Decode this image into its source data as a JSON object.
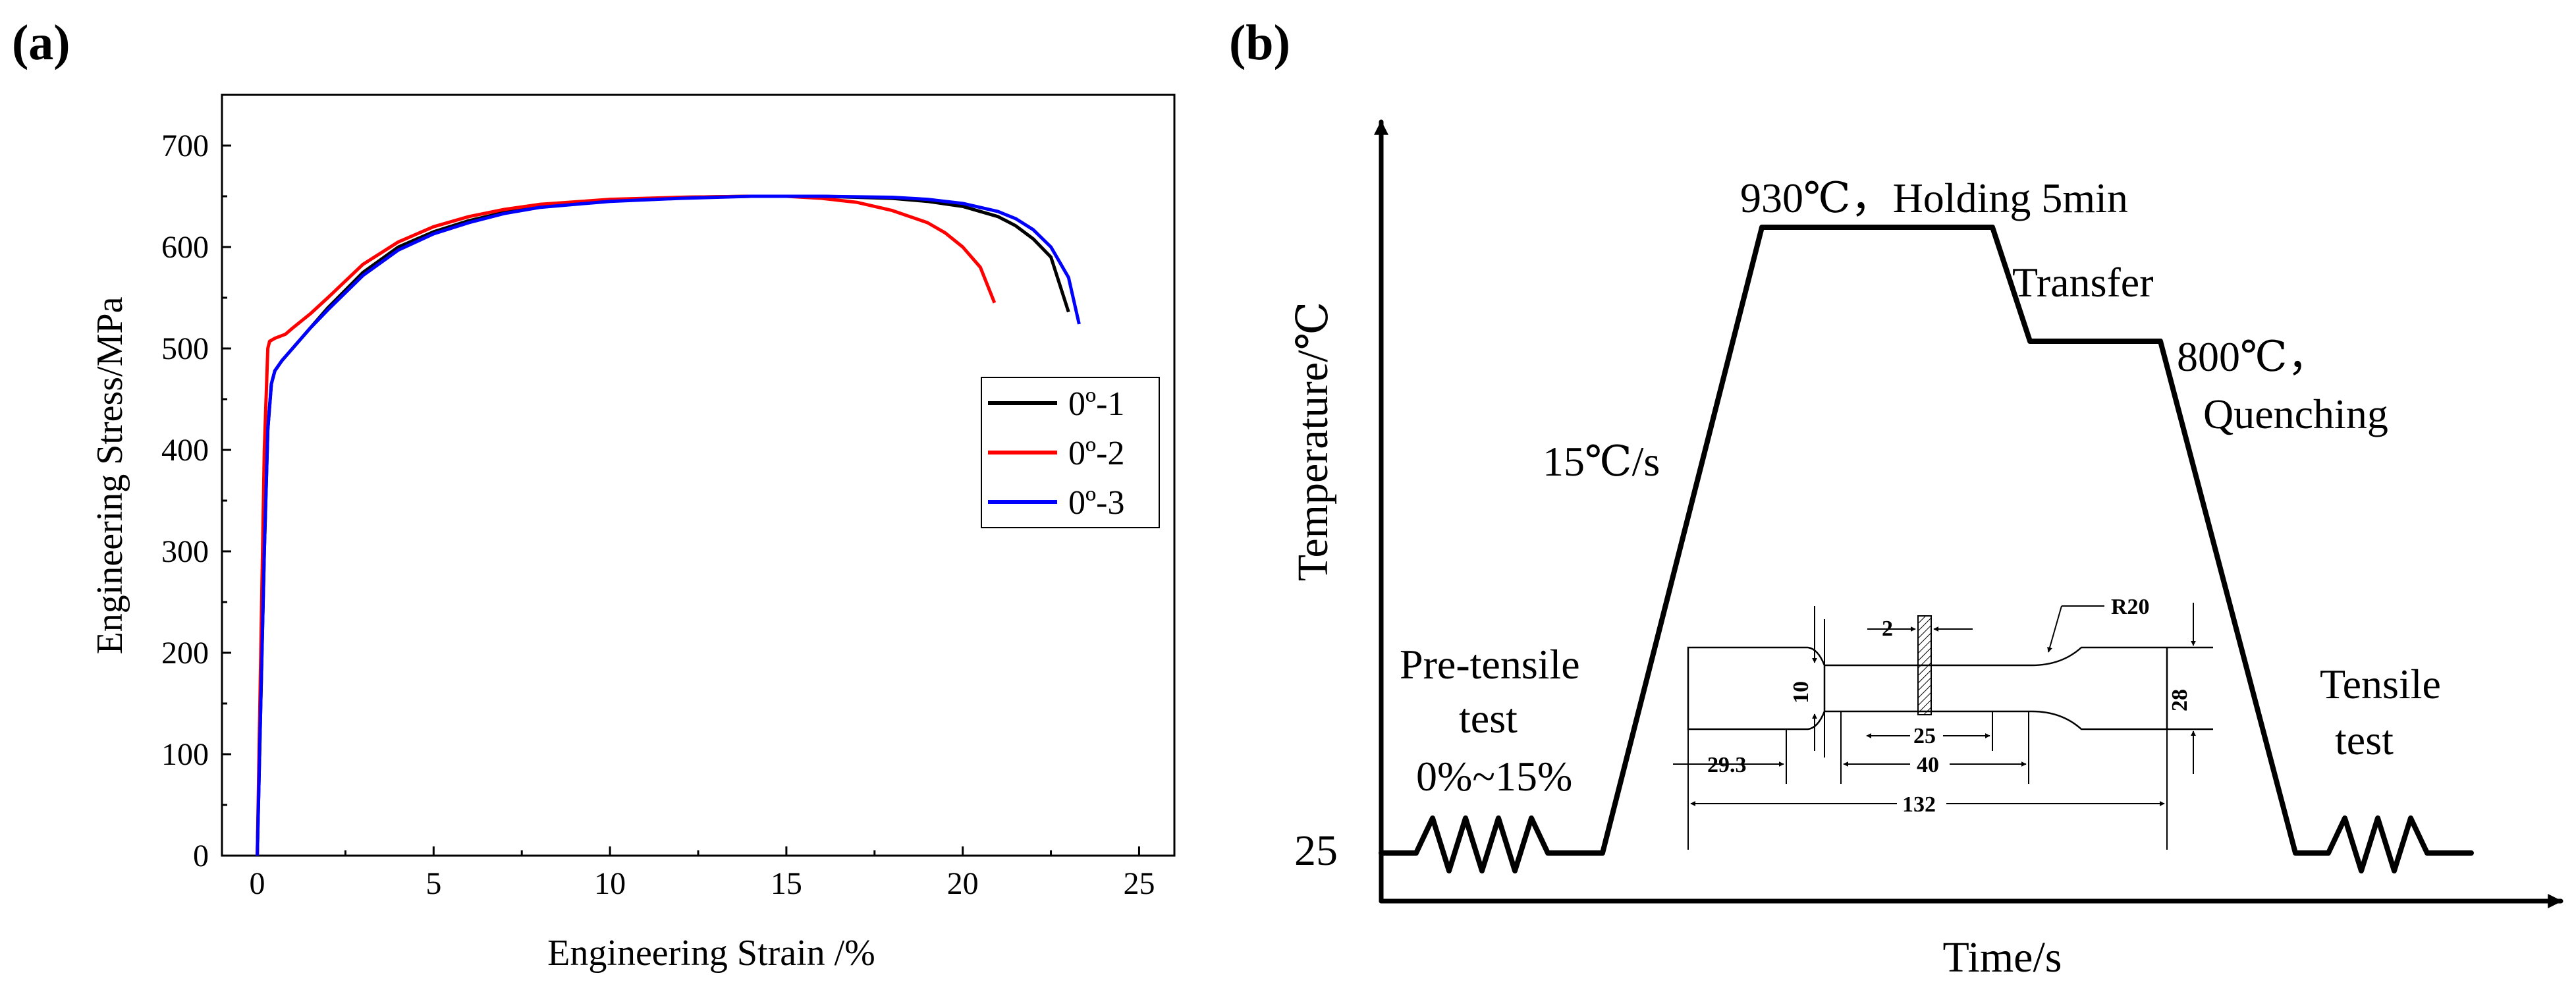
{
  "panel_a": {
    "label": "(a)",
    "chart_data": {
      "type": "line",
      "title": "",
      "xlabel": "Engineering Strain /%",
      "ylabel": "Engineering Stress/MPa",
      "xlim": [
        -1,
        26
      ],
      "ylim": [
        0,
        750
      ],
      "xticks": [
        0,
        5,
        10,
        15,
        20,
        25
      ],
      "yticks": [
        0,
        100,
        200,
        300,
        400,
        500,
        600,
        700
      ],
      "legend_position": "right",
      "series": [
        {
          "name": "0º-1",
          "color": "#000000",
          "x": [
            0.0,
            0.1,
            0.2,
            0.3,
            0.4,
            0.5,
            0.7,
            1,
            1.5,
            2,
            3,
            4,
            5,
            6,
            7,
            8,
            10,
            12,
            14,
            16,
            18,
            19,
            20,
            21,
            21.5,
            22,
            22.5,
            23.0
          ],
          "y": [
            0,
            150,
            300,
            420,
            465,
            478,
            488,
            500,
            520,
            540,
            575,
            600,
            615,
            626,
            634,
            640,
            646,
            649,
            650,
            650,
            648,
            645,
            640,
            630,
            621,
            608,
            590,
            536
          ]
        },
        {
          "name": "0º-2",
          "color": "#ff0000",
          "x": [
            0.0,
            0.1,
            0.2,
            0.3,
            0.35,
            0.5,
            0.8,
            1,
            1.5,
            2,
            3,
            4,
            5,
            6,
            7,
            8,
            10,
            12,
            14,
            15,
            16,
            17,
            18,
            19,
            19.5,
            20,
            20.5,
            20.9
          ],
          "y": [
            0,
            200,
            400,
            500,
            507,
            510,
            514,
            520,
            534,
            550,
            583,
            605,
            620,
            630,
            637,
            642,
            647,
            649,
            650,
            650,
            648,
            644,
            636,
            624,
            614,
            600,
            580,
            545
          ]
        },
        {
          "name": "0º-3",
          "color": "#0000ff",
          "x": [
            0.0,
            0.1,
            0.2,
            0.3,
            0.4,
            0.5,
            0.7,
            1,
            1.5,
            2,
            3,
            4,
            5,
            6,
            7,
            8,
            10,
            12,
            14,
            16,
            18,
            19,
            20,
            21,
            21.5,
            22,
            22.5,
            23.0,
            23.3
          ],
          "y": [
            0,
            150,
            300,
            420,
            465,
            478,
            488,
            500,
            520,
            538,
            572,
            597,
            613,
            624,
            633,
            639,
            645,
            648,
            650,
            650,
            649,
            647,
            643,
            635,
            628,
            617,
            600,
            570,
            524
          ]
        }
      ]
    }
  },
  "panel_b": {
    "label": "(b)",
    "xlabel": "Time/s",
    "ylabel": "Temperature/℃",
    "y_value_label": "25",
    "annotations": {
      "hold": "930℃，Holding 5min",
      "transfer": "Transfer",
      "quench_line1": "800℃，",
      "quench_line2": "Quenching",
      "rate": "15℃/s",
      "pre_line1": "Pre-tensile",
      "pre_line2": "test",
      "pre_line3": "0%~15%",
      "tensile_line1": "Tensile",
      "tensile_line2": "test"
    },
    "specimen_dims": {
      "d2": "2",
      "r20": "R20",
      "d10": "10",
      "d28": "28",
      "d25": "25",
      "d29": "29.3",
      "d40": "40",
      "d132": "132"
    }
  }
}
